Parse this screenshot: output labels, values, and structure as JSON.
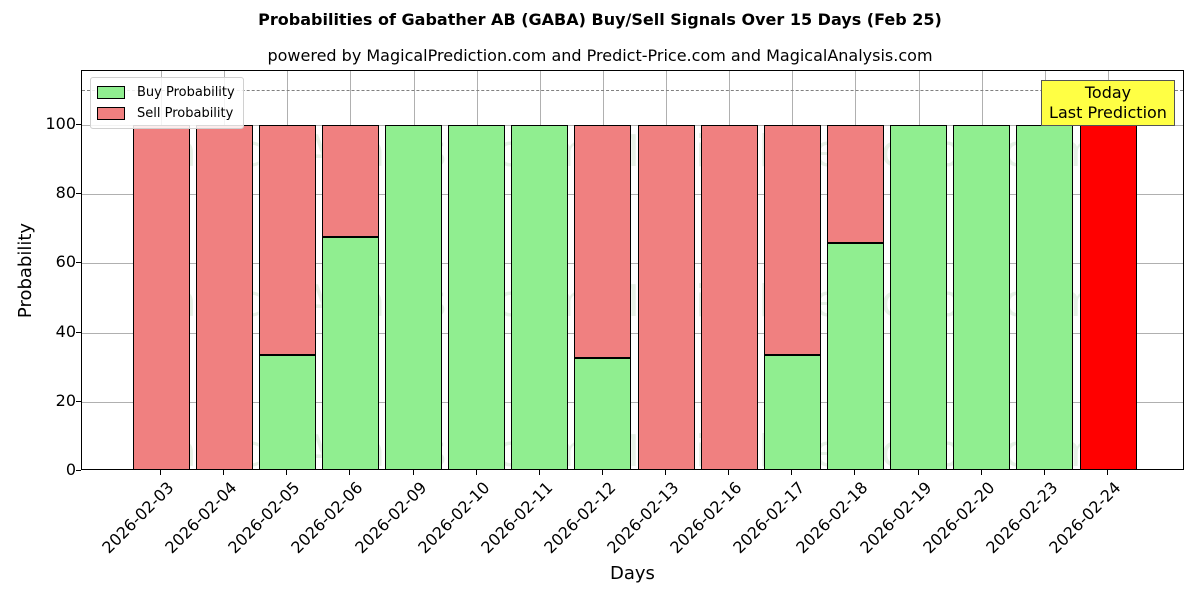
{
  "header": {
    "title": "Probabilities of Gabather AB (GABA) Buy/Sell Signals Over 15 Days (Feb 25)",
    "subtitle": "powered by MagicalPrediction.com and Predict-Price.com and MagicalAnalysis.com"
  },
  "legend": {
    "buy_label": "Buy Probability",
    "sell_label": "Sell Probability"
  },
  "annotation": {
    "line1": "Today",
    "line2": "Last Prediction"
  },
  "axes": {
    "xlabel": "Days",
    "ylabel": "Probability",
    "yticks": [
      "0",
      "20",
      "40",
      "60",
      "80",
      "100"
    ]
  },
  "watermarks": [
    "MagicalAnalysis.com",
    "MagicalPrediction.com"
  ],
  "colors": {
    "buy": "#90ee90",
    "sell": "#f08080",
    "today_sell": "#ff0000",
    "annotation_bg": "#ffff44"
  },
  "chart_data": {
    "type": "bar",
    "stacked": true,
    "title": "Probabilities of Gabather AB (GABA) Buy/Sell Signals Over 15 Days (Feb 25)",
    "subtitle": "powered by MagicalPrediction.com and Predict-Price.com and MagicalAnalysis.com",
    "xlabel": "Days",
    "ylabel": "Probability",
    "ylim": [
      0,
      115
    ],
    "yticks": [
      0,
      20,
      40,
      60,
      80,
      100
    ],
    "grid": true,
    "legend_position": "upper left",
    "reference_line": {
      "y": 110,
      "style": "dashed",
      "color": "#808080"
    },
    "annotations": [
      {
        "text": "Today\nLast Prediction",
        "x": "2026-02-24",
        "background": "#ffff44"
      }
    ],
    "categories": [
      "2026-02-03",
      "2026-02-04",
      "2026-02-05",
      "2026-02-06",
      "2026-02-09",
      "2026-02-10",
      "2026-02-11",
      "2026-02-12",
      "2026-02-13",
      "2026-02-16",
      "2026-02-17",
      "2026-02-18",
      "2026-02-19",
      "2026-02-20",
      "2026-02-23",
      "2026-02-24"
    ],
    "series": [
      {
        "name": "Buy Probability",
        "color": "#90ee90",
        "values": [
          0,
          0,
          33.5,
          67.6,
          100,
          100,
          100,
          32.7,
          0,
          0,
          33.5,
          65.9,
          100,
          100,
          100,
          0
        ]
      },
      {
        "name": "Sell Probability",
        "color": "#f08080",
        "values": [
          100,
          100,
          66.5,
          32.4,
          0,
          0,
          0,
          67.3,
          100,
          100,
          66.5,
          34.1,
          0,
          0,
          0,
          100
        ]
      }
    ]
  }
}
